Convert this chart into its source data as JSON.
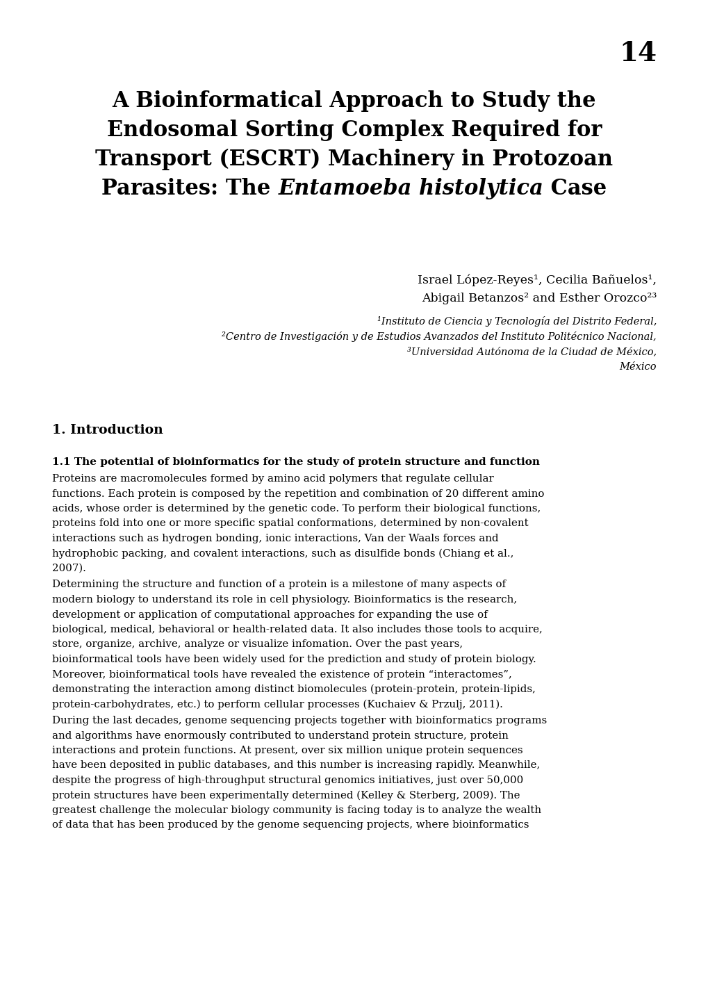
{
  "page_number": "14",
  "authors_line1": "Israel López-Reyes¹, Cecilia Bañuelos¹,",
  "authors_line2": "Abigail Betanzos² and Esther Orozco²³",
  "affil1": "¹Instituto de Ciencia y Tecnología del Distrito Federal,",
  "affil2": "²Centro de Investigación y de Estudios Avanzados del Instituto Politécnico Nacional,",
  "affil3": "³Universidad Autónoma de la Ciudad de México,",
  "affil4": "México",
  "section1": "1. Introduction",
  "subsection1": "1.1 The potential of bioinformatics for the study of protein structure and function",
  "para1_lines": [
    "Proteins are macromolecules formed by amino acid polymers that regulate cellular",
    "functions. Each protein is composed by the repetition and combination of 20 different amino",
    "acids, whose order is determined by the genetic code. To perform their biological functions,",
    "proteins fold into one or more specific spatial conformations, determined by non-covalent",
    "interactions such as hydrogen bonding, ionic interactions, Van der Waals forces and",
    "hydrophobic packing, and covalent interactions, such as disulfide bonds (Chiang et al.,",
    "2007)."
  ],
  "para2_lines": [
    "Determining the structure and function of a protein is a milestone of many aspects of",
    "modern biology to understand its role in cell physiology. Bioinformatics is the research,",
    "development or application of computational approaches for expanding the use of",
    "biological, medical, behavioral or health-related data. It also includes those tools to acquire,",
    "store, organize, archive, analyze or visualize infomation. Over the past years,",
    "bioinformatical tools have been widely used for the prediction and study of protein biology.",
    "Moreover, bioinformatical tools have revealed the existence of protein “interactomes”,",
    "demonstrating the interaction among distinct biomolecules (protein-protein, protein-lipids,",
    "protein-carbohydrates, etc.) to perform cellular processes (Kuchaiev & Przulj, 2011)."
  ],
  "para3_lines": [
    "During the last decades, genome sequencing projects together with bioinformatics programs",
    "and algorithms have enormously contributed to understand protein structure, protein",
    "interactions and protein functions. At present, over six million unique protein sequences",
    "have been deposited in public databases, and this number is increasing rapidly. Meanwhile,",
    "despite the progress of high-throughput structural genomics initiatives, just over 50,000",
    "protein structures have been experimentally determined (Kelley & Sterberg, 2009). The",
    "greatest challenge the molecular biology community is facing today is to analyze the wealth",
    "of data that has been produced by the genome sequencing projects, where bioinformatics"
  ],
  "background_color": "#ffffff",
  "text_color": "#000000"
}
